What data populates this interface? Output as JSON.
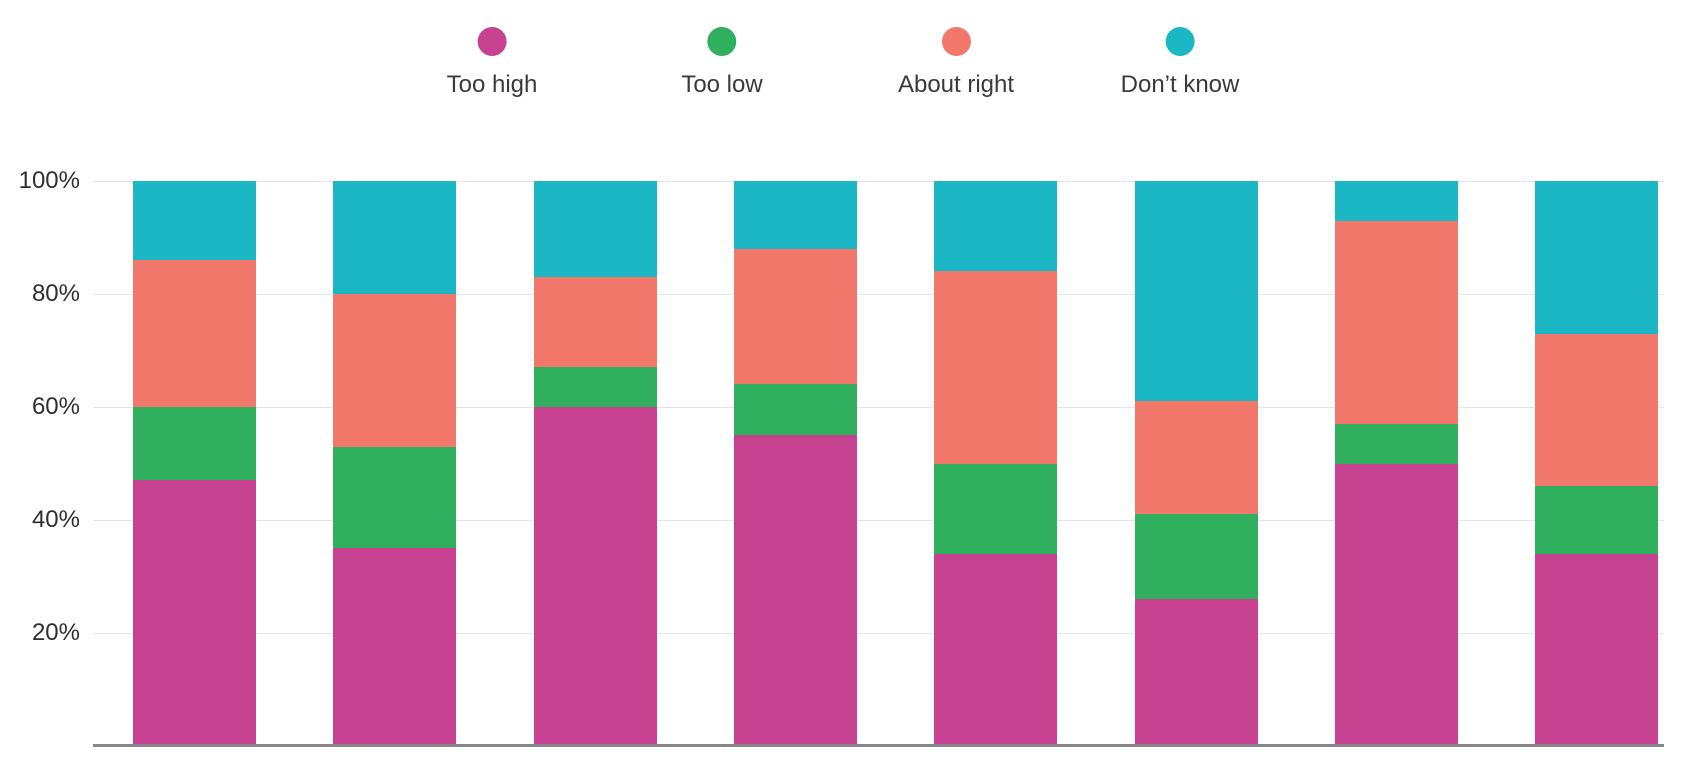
{
  "chart_data": {
    "type": "bar",
    "stacked": true,
    "orientation": "vertical",
    "title": "",
    "xlabel": "",
    "ylabel": "",
    "ylim": [
      0,
      100
    ],
    "grid": true,
    "legend_position": "top",
    "x_axis_labels_visible": false,
    "categories": [
      "",
      "",
      "",
      "",
      "",
      "",
      "",
      ""
    ],
    "y_ticks": [
      {
        "value": 100,
        "label": "100%"
      },
      {
        "value": 80,
        "label": "80%"
      },
      {
        "value": 60,
        "label": "60%"
      },
      {
        "value": 40,
        "label": "40%"
      },
      {
        "value": 20,
        "label": "20%"
      }
    ],
    "series": [
      {
        "name": "Too high",
        "color": "#c6418f",
        "values": [
          47,
          35,
          60,
          55,
          34,
          26,
          50,
          34
        ]
      },
      {
        "name": "Too low",
        "color": "#30af5f",
        "values": [
          13,
          18,
          7,
          9,
          16,
          15,
          7,
          12
        ]
      },
      {
        "name": "About right",
        "color": "#f2786c",
        "values": [
          26,
          27,
          16,
          24,
          34,
          20,
          36,
          27
        ]
      },
      {
        "name": "Don’t know",
        "color": "#1cb7c4",
        "values": [
          14,
          20,
          17,
          12,
          16,
          39,
          7,
          27
        ]
      }
    ]
  },
  "colors": {
    "background": "#ffffff",
    "gridline": "#e5e5e8",
    "axis_line": "#87878a",
    "tick_text": "#2f2f2f",
    "legend_text": "#3a3a3a"
  }
}
